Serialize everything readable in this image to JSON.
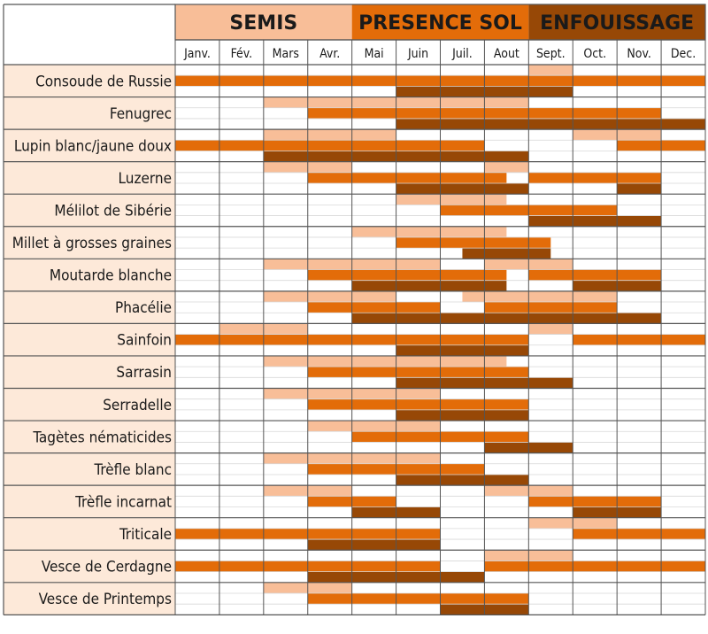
{
  "chart_data": {
    "type": "table",
    "phases": [
      {
        "key": "semis",
        "label": "SEMIS",
        "months": [
          0,
          3
        ],
        "color": "#F8BE98"
      },
      {
        "key": "presence",
        "label": "PRESENCE SOL",
        "months": [
          4,
          7
        ],
        "color": "#E36C09"
      },
      {
        "key": "enfouissage",
        "label": "ENFOUISSAGE",
        "months": [
          8,
          11
        ],
        "color": "#974806"
      }
    ],
    "months": [
      "Janv.",
      "Fév.",
      "Mars",
      "Avr.",
      "Mai",
      "Juin",
      "Juil.",
      "Aout",
      "Sept.",
      "Oct.",
      "Nov.",
      "Dec."
    ],
    "rows": [
      {
        "name": "Consoude de Russie",
        "semis": [
          8,
          8
        ],
        "presence": [
          0,
          11
        ],
        "enfouissage": [
          5,
          8
        ]
      },
      {
        "name": "Fenugrec",
        "semis": [
          2,
          7
        ],
        "presence": [
          3,
          10
        ],
        "enfouissage": [
          5,
          11
        ]
      },
      {
        "name": "Lupin blanc/jaune doux",
        "semis": [
          2,
          4,
          9,
          10
        ],
        "presence": [
          0,
          3.5,
          4,
          6,
          10,
          11
        ],
        "enfouissage": [
          2,
          7
        ]
      },
      {
        "name": "Luzerne",
        "semis": [
          2,
          3,
          7,
          7
        ],
        "presence": [
          3,
          6.5,
          8,
          10
        ],
        "enfouissage": [
          5,
          7,
          10,
          10
        ]
      },
      {
        "name": "Mélilot de Sibérie",
        "semis": [
          5,
          6.5
        ],
        "presence": [
          6,
          9
        ],
        "enfouissage": [
          8,
          10
        ]
      },
      {
        "name": "Millet à grosses graines",
        "semis": [
          4,
          6.5
        ],
        "presence": [
          5,
          7.5
        ],
        "enfouissage": [
          6.5,
          7.5
        ]
      },
      {
        "name": "Moutarde blanche",
        "semis": [
          2,
          5,
          7,
          8
        ],
        "presence": [
          3,
          6.5,
          8,
          10
        ],
        "enfouissage": [
          4,
          6.5,
          9,
          10
        ]
      },
      {
        "name": "Phacélie",
        "semis": [
          2,
          4,
          6.5,
          9
        ],
        "presence": [
          3,
          5,
          7,
          9
        ],
        "enfouissage": [
          4,
          6,
          7,
          10
        ]
      },
      {
        "name": "Sainfoin",
        "semis": [
          1,
          2,
          8,
          8
        ],
        "presence": [
          0,
          7,
          9,
          11
        ],
        "enfouissage": [
          5,
          7
        ]
      },
      {
        "name": "Sarrasin",
        "semis": [
          2,
          6.5
        ],
        "presence": [
          3,
          7
        ],
        "enfouissage": [
          5,
          8
        ]
      },
      {
        "name": "Serradelle",
        "semis": [
          2,
          5
        ],
        "presence": [
          3,
          7
        ],
        "enfouissage": [
          5,
          7
        ]
      },
      {
        "name": "Tagètes nématicides",
        "semis": [
          3,
          5
        ],
        "presence": [
          4,
          7
        ],
        "enfouissage": [
          7,
          8
        ]
      },
      {
        "name": "Trèfle blanc",
        "semis": [
          2,
          5
        ],
        "presence": [
          3,
          6
        ],
        "enfouissage": [
          5,
          7
        ]
      },
      {
        "name": "Trèfle incarnat",
        "semis": [
          2,
          3,
          7,
          8
        ],
        "presence": [
          3,
          4,
          8,
          10
        ],
        "enfouissage": [
          4,
          5,
          9,
          10
        ]
      },
      {
        "name": "Triticale",
        "semis": [
          8,
          9
        ],
        "presence": [
          0,
          5,
          9,
          11
        ],
        "enfouissage": [
          3,
          5
        ]
      },
      {
        "name": "Vesce de Cerdagne",
        "semis": [
          7,
          8
        ],
        "presence": [
          0,
          5,
          7,
          11
        ],
        "enfouissage": [
          3,
          6
        ]
      },
      {
        "name": "Vesce de Printemps",
        "semis": [
          2,
          3
        ],
        "presence": [
          3,
          7
        ],
        "enfouissage": [
          6,
          7
        ]
      }
    ]
  }
}
